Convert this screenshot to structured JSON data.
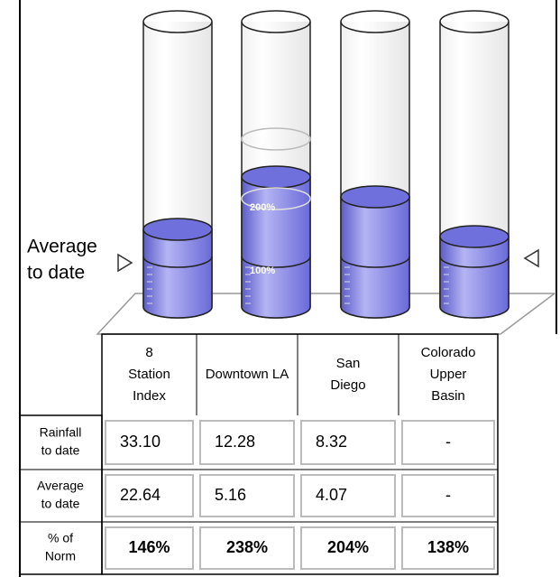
{
  "annotation": [
    "Average",
    "to date"
  ],
  "gauge_labels": [
    "200%",
    "100%"
  ],
  "table": {
    "columns": [
      [
        "8",
        "Station",
        "Index"
      ],
      [
        "Downtown LA"
      ],
      [
        "San",
        "Diego"
      ],
      [
        "Colorado",
        "Upper",
        "Basin"
      ]
    ],
    "rows": [
      {
        "label": [
          "Rainfall",
          "to date"
        ],
        "cells": [
          "33.10",
          "12.28",
          "8.32",
          "-"
        ]
      },
      {
        "label": [
          "Average",
          "to date"
        ],
        "cells": [
          "22.64",
          "5.16",
          "4.07",
          "-"
        ]
      },
      {
        "label": [
          "% of",
          "Norm"
        ],
        "cells": [
          "146%",
          "238%",
          "204%",
          "138%"
        ]
      }
    ]
  }
}
